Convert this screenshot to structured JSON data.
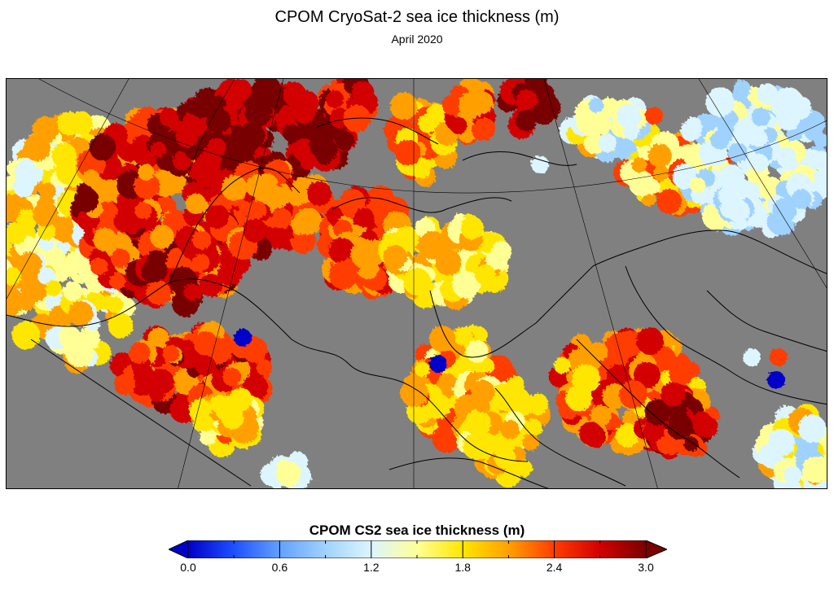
{
  "title": "CPOM CryoSat-2 sea ice thickness (m)",
  "subtitle": "April 2020",
  "colorbar": {
    "label": "CPOM CS2 sea ice thickness (m)",
    "min": 0.0,
    "max": 3.0,
    "unit": "m",
    "ticks": [
      "0.0",
      "0.6",
      "1.2",
      "1.8",
      "2.4",
      "3.0"
    ],
    "extend": "both",
    "colors": [
      "#0000c8",
      "#1e50ff",
      "#64a0ff",
      "#a0d2ff",
      "#dcf5ff",
      "#ffff96",
      "#ffe600",
      "#ffa000",
      "#ff3c00",
      "#d20000",
      "#780000"
    ]
  },
  "map": {
    "land_color": "#808080",
    "coast_color": "#000000",
    "projection": "polar stereographic"
  }
}
